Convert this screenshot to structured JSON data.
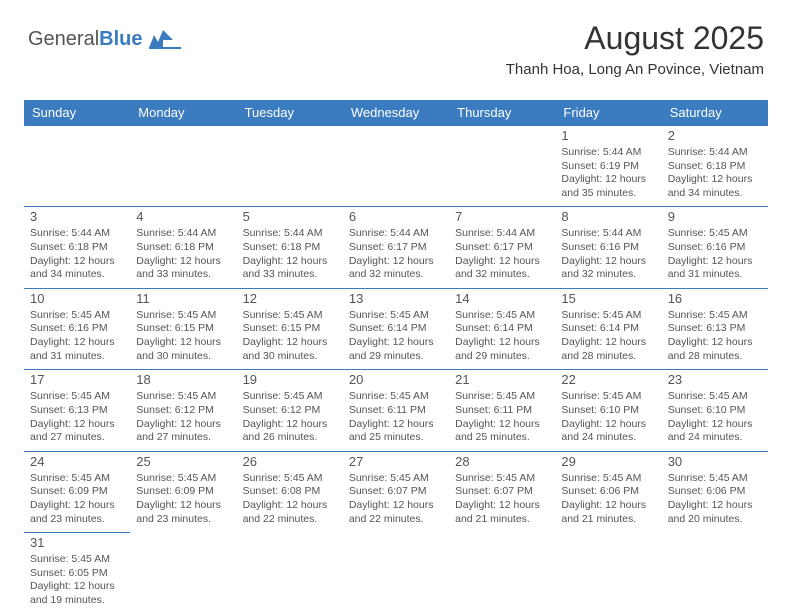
{
  "logo": {
    "part1": "General",
    "part2": "Blue"
  },
  "title": "August 2025",
  "location": "Thanh Hoa, Long An Povince, Vietnam",
  "colors": {
    "header_bg": "#3b7bbf",
    "header_text": "#ffffff",
    "border": "#3b7bbf",
    "text": "#555555",
    "background": "#ffffff"
  },
  "dayHeaders": [
    "Sunday",
    "Monday",
    "Tuesday",
    "Wednesday",
    "Thursday",
    "Friday",
    "Saturday"
  ],
  "weeks": [
    [
      null,
      null,
      null,
      null,
      null,
      {
        "n": "1",
        "sr": "5:44 AM",
        "ss": "6:19 PM",
        "dl": "12 hours and 35 minutes."
      },
      {
        "n": "2",
        "sr": "5:44 AM",
        "ss": "6:18 PM",
        "dl": "12 hours and 34 minutes."
      }
    ],
    [
      {
        "n": "3",
        "sr": "5:44 AM",
        "ss": "6:18 PM",
        "dl": "12 hours and 34 minutes."
      },
      {
        "n": "4",
        "sr": "5:44 AM",
        "ss": "6:18 PM",
        "dl": "12 hours and 33 minutes."
      },
      {
        "n": "5",
        "sr": "5:44 AM",
        "ss": "6:18 PM",
        "dl": "12 hours and 33 minutes."
      },
      {
        "n": "6",
        "sr": "5:44 AM",
        "ss": "6:17 PM",
        "dl": "12 hours and 32 minutes."
      },
      {
        "n": "7",
        "sr": "5:44 AM",
        "ss": "6:17 PM",
        "dl": "12 hours and 32 minutes."
      },
      {
        "n": "8",
        "sr": "5:44 AM",
        "ss": "6:16 PM",
        "dl": "12 hours and 32 minutes."
      },
      {
        "n": "9",
        "sr": "5:45 AM",
        "ss": "6:16 PM",
        "dl": "12 hours and 31 minutes."
      }
    ],
    [
      {
        "n": "10",
        "sr": "5:45 AM",
        "ss": "6:16 PM",
        "dl": "12 hours and 31 minutes."
      },
      {
        "n": "11",
        "sr": "5:45 AM",
        "ss": "6:15 PM",
        "dl": "12 hours and 30 minutes."
      },
      {
        "n": "12",
        "sr": "5:45 AM",
        "ss": "6:15 PM",
        "dl": "12 hours and 30 minutes."
      },
      {
        "n": "13",
        "sr": "5:45 AM",
        "ss": "6:14 PM",
        "dl": "12 hours and 29 minutes."
      },
      {
        "n": "14",
        "sr": "5:45 AM",
        "ss": "6:14 PM",
        "dl": "12 hours and 29 minutes."
      },
      {
        "n": "15",
        "sr": "5:45 AM",
        "ss": "6:14 PM",
        "dl": "12 hours and 28 minutes."
      },
      {
        "n": "16",
        "sr": "5:45 AM",
        "ss": "6:13 PM",
        "dl": "12 hours and 28 minutes."
      }
    ],
    [
      {
        "n": "17",
        "sr": "5:45 AM",
        "ss": "6:13 PM",
        "dl": "12 hours and 27 minutes."
      },
      {
        "n": "18",
        "sr": "5:45 AM",
        "ss": "6:12 PM",
        "dl": "12 hours and 27 minutes."
      },
      {
        "n": "19",
        "sr": "5:45 AM",
        "ss": "6:12 PM",
        "dl": "12 hours and 26 minutes."
      },
      {
        "n": "20",
        "sr": "5:45 AM",
        "ss": "6:11 PM",
        "dl": "12 hours and 25 minutes."
      },
      {
        "n": "21",
        "sr": "5:45 AM",
        "ss": "6:11 PM",
        "dl": "12 hours and 25 minutes."
      },
      {
        "n": "22",
        "sr": "5:45 AM",
        "ss": "6:10 PM",
        "dl": "12 hours and 24 minutes."
      },
      {
        "n": "23",
        "sr": "5:45 AM",
        "ss": "6:10 PM",
        "dl": "12 hours and 24 minutes."
      }
    ],
    [
      {
        "n": "24",
        "sr": "5:45 AM",
        "ss": "6:09 PM",
        "dl": "12 hours and 23 minutes."
      },
      {
        "n": "25",
        "sr": "5:45 AM",
        "ss": "6:09 PM",
        "dl": "12 hours and 23 minutes."
      },
      {
        "n": "26",
        "sr": "5:45 AM",
        "ss": "6:08 PM",
        "dl": "12 hours and 22 minutes."
      },
      {
        "n": "27",
        "sr": "5:45 AM",
        "ss": "6:07 PM",
        "dl": "12 hours and 22 minutes."
      },
      {
        "n": "28",
        "sr": "5:45 AM",
        "ss": "6:07 PM",
        "dl": "12 hours and 21 minutes."
      },
      {
        "n": "29",
        "sr": "5:45 AM",
        "ss": "6:06 PM",
        "dl": "12 hours and 21 minutes."
      },
      {
        "n": "30",
        "sr": "5:45 AM",
        "ss": "6:06 PM",
        "dl": "12 hours and 20 minutes."
      }
    ],
    [
      {
        "n": "31",
        "sr": "5:45 AM",
        "ss": "6:05 PM",
        "dl": "12 hours and 19 minutes."
      },
      null,
      null,
      null,
      null,
      null,
      null
    ]
  ],
  "labels": {
    "sunrise": "Sunrise:",
    "sunset": "Sunset:",
    "daylight": "Daylight:"
  }
}
